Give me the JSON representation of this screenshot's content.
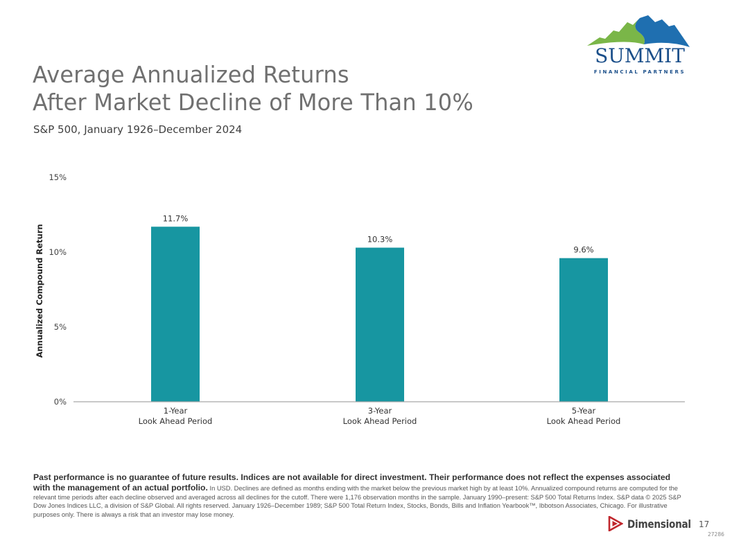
{
  "brand": {
    "logo_name": "SUMMIT",
    "logo_tagline": "FINANCIAL PARTNERS",
    "colors": {
      "green": "#7ab648",
      "blue": "#1f6fb0",
      "navy": "#1b4f8a",
      "bar": "#1796a1",
      "dimensional_red": "#c0272d"
    }
  },
  "header": {
    "title_line1": "Average Annualized Returns",
    "title_line2": "After Market Decline of More Than 10%",
    "subtitle": "S&P 500, January 1926–December 2024"
  },
  "chart_data": {
    "type": "bar",
    "title": "Average Annualized Returns After Market Decline of More Than 10%",
    "xlabel": "",
    "ylabel": "Annualized Compound Return",
    "ylim": [
      0,
      15
    ],
    "yticks": [
      0,
      5,
      10,
      15
    ],
    "ytick_labels": [
      "0%",
      "5%",
      "10%",
      "15%"
    ],
    "grid": false,
    "categories": [
      "1-Year",
      "3-Year",
      "5-Year"
    ],
    "category_sublabels": [
      "Look Ahead Period",
      "Look Ahead Period",
      "Look Ahead Period"
    ],
    "values": [
      11.7,
      10.3,
      9.6
    ],
    "data_labels": [
      "11.7%",
      "10.3%",
      "9.6%"
    ]
  },
  "footer": {
    "disclaimer_bold": "Past performance is no guarantee of future results. Indices are not available for direct investment. Their performance does not reflect the expenses associated with the management of an actual portfolio.",
    "disclaimer_text": "In USD. Declines are defined as months ending with the market below the previous market high by at least 10%. Annualized compound returns are computed for the relevant time periods after each decline observed and averaged across all declines for the cutoff. There were 1,176 observation months in the sample. January 1990–present: S&P 500 Total Returns Index. S&P data © 2025 S&P Dow Jones Indices LLC, a division of S&P Global. All rights reserved. January 1926–December 1989; S&P 500 Total Return Index, Stocks, Bonds, Bills and Inflation Yearbook™, Ibbotson Associates, Chicago. For illustrative purposes only. There is always a risk that an investor may lose money.",
    "dimensional_name": "Dimensional",
    "page_number": "17",
    "job_code": "27286"
  }
}
